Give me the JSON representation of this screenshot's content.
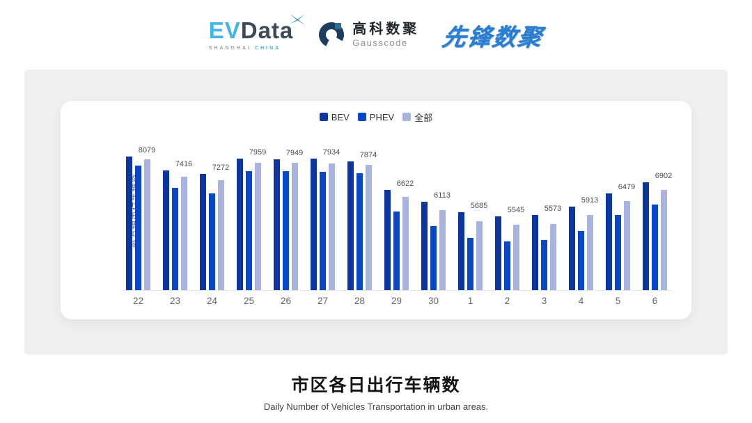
{
  "header": {
    "evdata": {
      "part1": "EV",
      "part2": "Data",
      "sub1": "SHANGHAI",
      "sub2": "CHINA"
    },
    "gausscode": {
      "name_cn": "高科数聚",
      "name_en": "Gausscode"
    },
    "pioneer": {
      "name": "先锋数聚"
    }
  },
  "chart_data": {
    "type": "bar",
    "ylabel": "每万辆出行车辆数",
    "categories": [
      "22",
      "23",
      "24",
      "25",
      "26",
      "27",
      "28",
      "29",
      "30",
      "1",
      "2",
      "3",
      "4",
      "5",
      "6"
    ],
    "series": [
      {
        "key": "bev",
        "name": "BEV",
        "color": "#0c35a0",
        "values": [
          8210,
          7650,
          7520,
          8130,
          8100,
          8115,
          8010,
          6905,
          6445,
          6040,
          5880,
          5930,
          6255,
          6770,
          7195
        ]
      },
      {
        "key": "phev",
        "name": "PHEV",
        "color": "#0847c8",
        "values": [
          7845,
          6990,
          6770,
          7620,
          7630,
          7600,
          7555,
          6065,
          5505,
          5040,
          4895,
          4940,
          5315,
          5915,
          6340
        ]
      },
      {
        "key": "all",
        "name": "全部",
        "color": "#a9b3e0",
        "values": [
          8079,
          7416,
          7272,
          7959,
          7949,
          7934,
          7874,
          6622,
          6113,
          5685,
          5545,
          5573,
          5913,
          6479,
          6902
        ]
      }
    ],
    "data_labels_series": "全部",
    "data_labels": [
      8079,
      7416,
      7272,
      7959,
      7949,
      7934,
      7874,
      6622,
      6113,
      5685,
      5545,
      5573,
      5913,
      6479,
      6902
    ],
    "ylim": [
      3000,
      9200
    ],
    "grid": false,
    "legend_position": "top-center"
  },
  "footer": {
    "title": "市区各日出行车辆数",
    "subtitle": "Daily Number of Vehicles Transportation in urban areas."
  }
}
